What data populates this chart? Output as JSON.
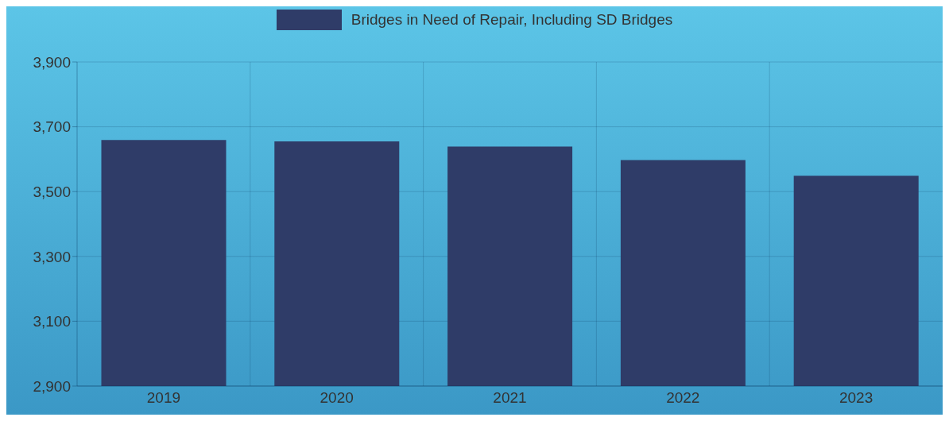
{
  "chart_data": {
    "type": "bar",
    "categories": [
      "2019",
      "2020",
      "2021",
      "2022",
      "2023"
    ],
    "series": [
      {
        "name": "Bridges in Need of Repair, Including SD Bridges",
        "color": "#2f3c68",
        "values": [
          3659,
          3655,
          3639,
          3597,
          3549
        ]
      }
    ],
    "ylim": [
      2900,
      3900
    ],
    "yticks": [
      {
        "value": 2900,
        "label": "2,900"
      },
      {
        "value": 3100,
        "label": "3,100"
      },
      {
        "value": 3300,
        "label": "3,300"
      },
      {
        "value": 3500,
        "label": "3,500"
      },
      {
        "value": 3700,
        "label": "3,700"
      },
      {
        "value": 3900,
        "label": "3,900"
      }
    ],
    "grid": true,
    "legend": "top"
  }
}
